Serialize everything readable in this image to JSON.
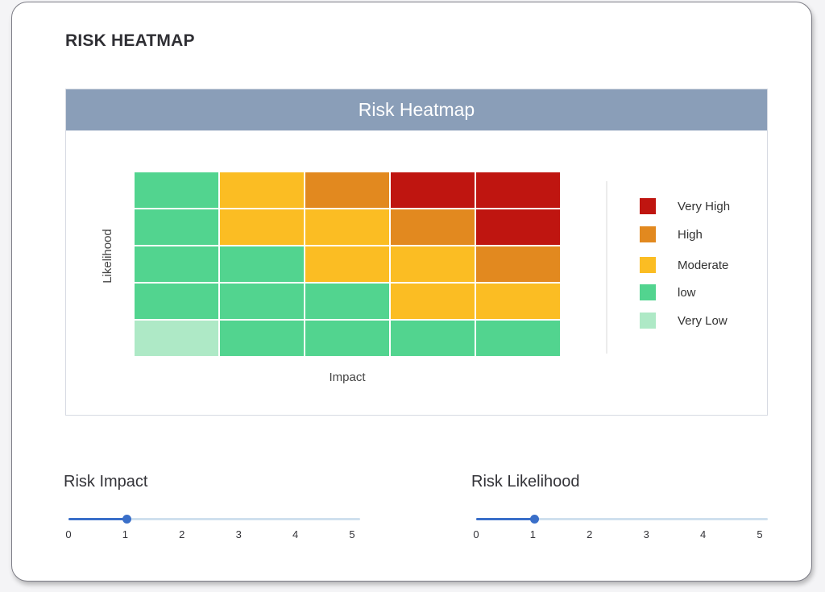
{
  "page": {
    "title": "RISK HEATMAP"
  },
  "chart_data": {
    "type": "heatmap",
    "title": "Risk Heatmap",
    "xlabel": "Impact",
    "ylabel": "Likelihood",
    "grid": false,
    "legend_position": "right",
    "levels": [
      "Very High",
      "High",
      "Moderate",
      "low",
      "Very Low"
    ],
    "level_colors": {
      "Very High": "#bf1510",
      "High": "#e2891f",
      "Moderate": "#fbbd23",
      "low": "#52d48f",
      "Very Low": "#aee9c6"
    },
    "rows_top_to_bottom": [
      [
        "low",
        "Moderate",
        "High",
        "Very High",
        "Very High"
      ],
      [
        "low",
        "Moderate",
        "Moderate",
        "High",
        "Very High"
      ],
      [
        "low",
        "low",
        "Moderate",
        "Moderate",
        "High"
      ],
      [
        "low",
        "low",
        "low",
        "Moderate",
        "Moderate"
      ],
      [
        "Very Low",
        "low",
        "low",
        "low",
        "low"
      ]
    ]
  },
  "controls": {
    "impact": {
      "label": "Risk Impact",
      "min": 0,
      "max": 5,
      "value": 1,
      "ticks": [
        "0",
        "1",
        "2",
        "3",
        "4",
        "5"
      ]
    },
    "likelihood": {
      "label": "Risk Likelihood",
      "min": 0,
      "max": 5,
      "value": 1,
      "ticks": [
        "0",
        "1",
        "2",
        "3",
        "4",
        "5"
      ]
    }
  },
  "colors": {
    "accent": "#3a6fc9",
    "header": "#8a9eb8"
  }
}
